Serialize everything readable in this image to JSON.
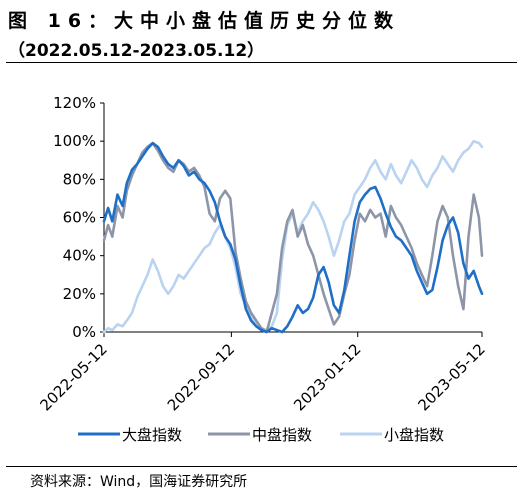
{
  "header": {
    "title": "图 16：大中小盘估值历史分位数",
    "subtitle": "（2022.05.12-2023.05.12）"
  },
  "footer": {
    "source": "资料来源：Wind，国海证券研究所"
  },
  "colors": {
    "large": "#1f6fc6",
    "mid": "#8c96a8",
    "small": "#b9d3f0"
  },
  "chart_data": {
    "type": "line",
    "title": "图 16：大中小盘估值历史分位数",
    "xlabel": "",
    "ylabel": "",
    "ylim": [
      0,
      120
    ],
    "yticks": [
      "0%",
      "20%",
      "40%",
      "60%",
      "80%",
      "100%",
      "120%"
    ],
    "ytick_values": [
      0,
      20,
      40,
      60,
      80,
      100,
      120
    ],
    "xlim": [
      "2022-05-12",
      "2023-05-12"
    ],
    "xticks": [
      "2022-05-12",
      "2022-09-12",
      "2023-01-12",
      "2023-05-12"
    ],
    "grid": false,
    "legend": "bottom",
    "series": [
      {
        "name": "大盘指数",
        "color": "#1f6fc6",
        "points": [
          [
            "2022-05-12",
            58
          ],
          [
            "2022-05-16",
            65
          ],
          [
            "2022-05-20",
            58
          ],
          [
            "2022-05-25",
            72
          ],
          [
            "2022-05-30",
            66
          ],
          [
            "2022-06-03",
            78
          ],
          [
            "2022-06-08",
            85
          ],
          [
            "2022-06-13",
            88
          ],
          [
            "2022-06-18",
            92
          ],
          [
            "2022-06-23",
            96
          ],
          [
            "2022-06-28",
            99
          ],
          [
            "2022-07-03",
            97
          ],
          [
            "2022-07-08",
            92
          ],
          [
            "2022-07-13",
            88
          ],
          [
            "2022-07-18",
            86
          ],
          [
            "2022-07-23",
            90
          ],
          [
            "2022-07-28",
            87
          ],
          [
            "2022-08-02",
            82
          ],
          [
            "2022-08-07",
            84
          ],
          [
            "2022-08-12",
            80
          ],
          [
            "2022-08-17",
            78
          ],
          [
            "2022-08-22",
            74
          ],
          [
            "2022-08-27",
            68
          ],
          [
            "2022-09-01",
            58
          ],
          [
            "2022-09-06",
            50
          ],
          [
            "2022-09-11",
            46
          ],
          [
            "2022-09-16",
            38
          ],
          [
            "2022-09-21",
            24
          ],
          [
            "2022-09-26",
            12
          ],
          [
            "2022-10-01",
            6
          ],
          [
            "2022-10-06",
            3
          ],
          [
            "2022-10-11",
            1
          ],
          [
            "2022-10-16",
            0
          ],
          [
            "2022-10-21",
            2
          ],
          [
            "2022-10-26",
            1
          ],
          [
            "2022-10-31",
            0
          ],
          [
            "2022-11-05",
            3
          ],
          [
            "2022-11-10",
            8
          ],
          [
            "2022-11-15",
            14
          ],
          [
            "2022-11-20",
            10
          ],
          [
            "2022-11-25",
            12
          ],
          [
            "2022-11-30",
            18
          ],
          [
            "2022-12-05",
            30
          ],
          [
            "2022-12-10",
            34
          ],
          [
            "2022-12-15",
            26
          ],
          [
            "2022-12-20",
            14
          ],
          [
            "2022-12-25",
            10
          ],
          [
            "2022-12-30",
            22
          ],
          [
            "2023-01-04",
            40
          ],
          [
            "2023-01-09",
            58
          ],
          [
            "2023-01-14",
            68
          ],
          [
            "2023-01-19",
            72
          ],
          [
            "2023-01-24",
            75
          ],
          [
            "2023-01-29",
            76
          ],
          [
            "2023-02-03",
            70
          ],
          [
            "2023-02-08",
            62
          ],
          [
            "2023-02-13",
            55
          ],
          [
            "2023-02-18",
            50
          ],
          [
            "2023-02-23",
            48
          ],
          [
            "2023-02-28",
            44
          ],
          [
            "2023-03-05",
            40
          ],
          [
            "2023-03-10",
            32
          ],
          [
            "2023-03-15",
            26
          ],
          [
            "2023-03-20",
            20
          ],
          [
            "2023-03-25",
            22
          ],
          [
            "2023-03-30",
            34
          ],
          [
            "2023-04-04",
            48
          ],
          [
            "2023-04-09",
            56
          ],
          [
            "2023-04-14",
            60
          ],
          [
            "2023-04-19",
            52
          ],
          [
            "2023-04-24",
            36
          ],
          [
            "2023-04-29",
            28
          ],
          [
            "2023-05-04",
            32
          ],
          [
            "2023-05-09",
            24
          ],
          [
            "2023-05-12",
            20
          ]
        ]
      },
      {
        "name": "中盘指数",
        "color": "#8c96a8",
        "points": [
          [
            "2022-05-12",
            48
          ],
          [
            "2022-05-16",
            56
          ],
          [
            "2022-05-20",
            50
          ],
          [
            "2022-05-25",
            66
          ],
          [
            "2022-05-30",
            60
          ],
          [
            "2022-06-03",
            74
          ],
          [
            "2022-06-08",
            82
          ],
          [
            "2022-06-13",
            88
          ],
          [
            "2022-06-18",
            94
          ],
          [
            "2022-06-23",
            97
          ],
          [
            "2022-06-28",
            99
          ],
          [
            "2022-07-03",
            95
          ],
          [
            "2022-07-08",
            90
          ],
          [
            "2022-07-13",
            86
          ],
          [
            "2022-07-18",
            84
          ],
          [
            "2022-07-23",
            90
          ],
          [
            "2022-07-28",
            88
          ],
          [
            "2022-08-02",
            84
          ],
          [
            "2022-08-07",
            86
          ],
          [
            "2022-08-12",
            82
          ],
          [
            "2022-08-17",
            76
          ],
          [
            "2022-08-22",
            62
          ],
          [
            "2022-08-27",
            58
          ],
          [
            "2022-09-01",
            70
          ],
          [
            "2022-09-06",
            74
          ],
          [
            "2022-09-11",
            70
          ],
          [
            "2022-09-16",
            42
          ],
          [
            "2022-09-21",
            28
          ],
          [
            "2022-09-26",
            16
          ],
          [
            "2022-10-01",
            10
          ],
          [
            "2022-10-06",
            6
          ],
          [
            "2022-10-11",
            2
          ],
          [
            "2022-10-16",
            0
          ],
          [
            "2022-10-21",
            10
          ],
          [
            "2022-10-26",
            20
          ],
          [
            "2022-10-31",
            44
          ],
          [
            "2022-11-05",
            58
          ],
          [
            "2022-11-10",
            64
          ],
          [
            "2022-11-15",
            50
          ],
          [
            "2022-11-20",
            56
          ],
          [
            "2022-11-25",
            46
          ],
          [
            "2022-11-30",
            40
          ],
          [
            "2022-12-05",
            30
          ],
          [
            "2022-12-10",
            20
          ],
          [
            "2022-12-15",
            12
          ],
          [
            "2022-12-20",
            4
          ],
          [
            "2022-12-25",
            8
          ],
          [
            "2022-12-30",
            20
          ],
          [
            "2023-01-04",
            30
          ],
          [
            "2023-01-09",
            48
          ],
          [
            "2023-01-14",
            62
          ],
          [
            "2023-01-19",
            58
          ],
          [
            "2023-01-24",
            64
          ],
          [
            "2023-01-29",
            60
          ],
          [
            "2023-02-03",
            62
          ],
          [
            "2023-02-08",
            50
          ],
          [
            "2023-02-13",
            66
          ],
          [
            "2023-02-18",
            60
          ],
          [
            "2023-02-23",
            56
          ],
          [
            "2023-02-28",
            50
          ],
          [
            "2023-03-05",
            44
          ],
          [
            "2023-03-10",
            36
          ],
          [
            "2023-03-15",
            30
          ],
          [
            "2023-03-20",
            24
          ],
          [
            "2023-03-25",
            40
          ],
          [
            "2023-03-30",
            58
          ],
          [
            "2023-04-04",
            66
          ],
          [
            "2023-04-09",
            60
          ],
          [
            "2023-04-14",
            40
          ],
          [
            "2023-04-19",
            24
          ],
          [
            "2023-04-24",
            12
          ],
          [
            "2023-04-29",
            50
          ],
          [
            "2023-05-04",
            72
          ],
          [
            "2023-05-09",
            60
          ],
          [
            "2023-05-12",
            40
          ]
        ]
      },
      {
        "name": "小盘指数",
        "color": "#b9d3f0",
        "points": [
          [
            "2022-05-12",
            0
          ],
          [
            "2022-05-16",
            2
          ],
          [
            "2022-05-20",
            1
          ],
          [
            "2022-05-25",
            4
          ],
          [
            "2022-05-30",
            3
          ],
          [
            "2022-06-03",
            6
          ],
          [
            "2022-06-08",
            10
          ],
          [
            "2022-06-13",
            18
          ],
          [
            "2022-06-18",
            24
          ],
          [
            "2022-06-23",
            30
          ],
          [
            "2022-06-28",
            38
          ],
          [
            "2022-07-03",
            32
          ],
          [
            "2022-07-08",
            24
          ],
          [
            "2022-07-13",
            20
          ],
          [
            "2022-07-18",
            24
          ],
          [
            "2022-07-23",
            30
          ],
          [
            "2022-07-28",
            28
          ],
          [
            "2022-08-02",
            32
          ],
          [
            "2022-08-07",
            36
          ],
          [
            "2022-08-12",
            40
          ],
          [
            "2022-08-17",
            44
          ],
          [
            "2022-08-22",
            46
          ],
          [
            "2022-08-27",
            52
          ],
          [
            "2022-09-01",
            56
          ],
          [
            "2022-09-06",
            50
          ],
          [
            "2022-09-11",
            44
          ],
          [
            "2022-09-16",
            34
          ],
          [
            "2022-09-21",
            20
          ],
          [
            "2022-09-26",
            14
          ],
          [
            "2022-10-01",
            8
          ],
          [
            "2022-10-06",
            4
          ],
          [
            "2022-10-11",
            2
          ],
          [
            "2022-10-16",
            1
          ],
          [
            "2022-10-21",
            3
          ],
          [
            "2022-10-26",
            10
          ],
          [
            "2022-10-31",
            38
          ],
          [
            "2022-11-05",
            56
          ],
          [
            "2022-11-10",
            62
          ],
          [
            "2022-11-15",
            52
          ],
          [
            "2022-11-20",
            58
          ],
          [
            "2022-11-25",
            62
          ],
          [
            "2022-11-30",
            68
          ],
          [
            "2022-12-05",
            64
          ],
          [
            "2022-12-10",
            58
          ],
          [
            "2022-12-15",
            50
          ],
          [
            "2022-12-20",
            40
          ],
          [
            "2022-12-25",
            48
          ],
          [
            "2022-12-30",
            58
          ],
          [
            "2023-01-04",
            62
          ],
          [
            "2023-01-09",
            72
          ],
          [
            "2023-01-14",
            76
          ],
          [
            "2023-01-19",
            80
          ],
          [
            "2023-01-24",
            86
          ],
          [
            "2023-01-29",
            90
          ],
          [
            "2023-02-03",
            84
          ],
          [
            "2023-02-08",
            80
          ],
          [
            "2023-02-13",
            88
          ],
          [
            "2023-02-18",
            82
          ],
          [
            "2023-02-23",
            78
          ],
          [
            "2023-02-28",
            84
          ],
          [
            "2023-03-05",
            90
          ],
          [
            "2023-03-10",
            86
          ],
          [
            "2023-03-15",
            80
          ],
          [
            "2023-03-20",
            76
          ],
          [
            "2023-03-25",
            82
          ],
          [
            "2023-03-30",
            86
          ],
          [
            "2023-04-04",
            92
          ],
          [
            "2023-04-09",
            88
          ],
          [
            "2023-04-14",
            84
          ],
          [
            "2023-04-19",
            90
          ],
          [
            "2023-04-24",
            94
          ],
          [
            "2023-04-29",
            96
          ],
          [
            "2023-05-04",
            100
          ],
          [
            "2023-05-09",
            99
          ],
          [
            "2023-05-12",
            97
          ]
        ]
      }
    ]
  }
}
